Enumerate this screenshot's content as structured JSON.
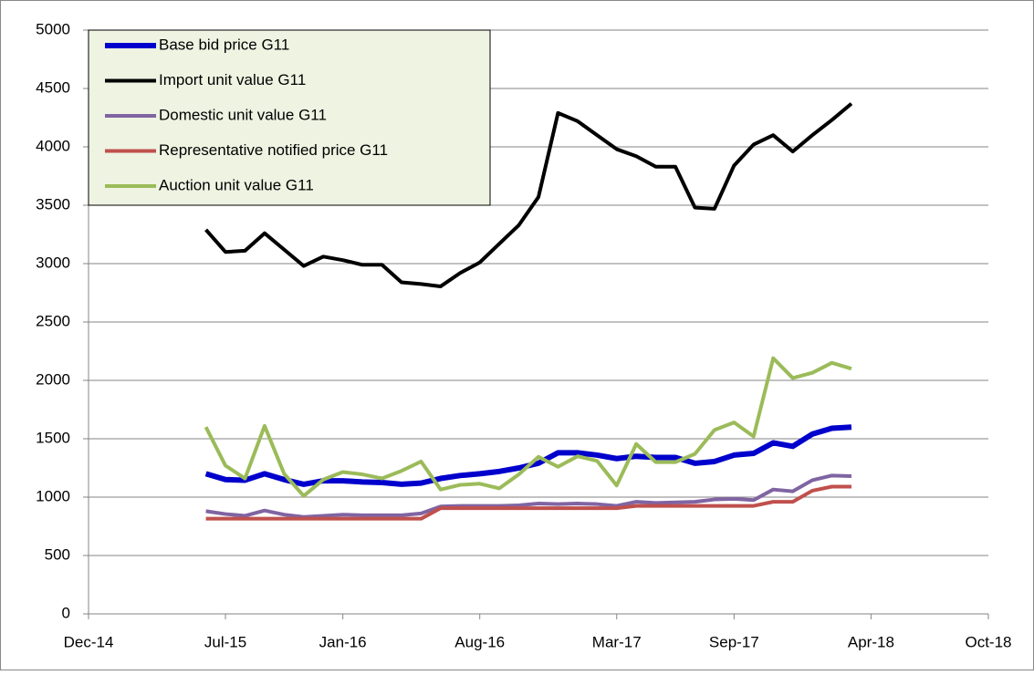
{
  "chart_data": {
    "type": "line",
    "x": [
      "2015-06",
      "2015-07",
      "2015-08",
      "2015-09",
      "2015-10",
      "2015-11",
      "2015-12",
      "2016-01",
      "2016-02",
      "2016-03",
      "2016-04",
      "2016-05",
      "2016-06",
      "2016-07",
      "2016-08",
      "2016-09",
      "2016-10",
      "2016-11",
      "2016-12",
      "2017-01",
      "2017-02",
      "2017-03",
      "2017-04",
      "2017-05",
      "2017-06",
      "2017-07",
      "2017-08",
      "2017-09",
      "2017-10",
      "2017-11",
      "2017-12",
      "2018-01",
      "2018-02",
      "2018-03"
    ],
    "series": [
      {
        "name": "Base bid price G11",
        "color": "#0000cc",
        "values": [
          1200,
          1150,
          1145,
          1200,
          1150,
          1110,
          1140,
          1140,
          1130,
          1125,
          1110,
          1120,
          1160,
          1185,
          1200,
          1220,
          1250,
          1290,
          1380,
          1380,
          1360,
          1330,
          1350,
          1340,
          1340,
          1290,
          1305,
          1360,
          1375,
          1465,
          1435,
          1540,
          1590,
          1600
        ]
      },
      {
        "name": "Import unit value G11",
        "color": "#000000",
        "values": [
          3290,
          3100,
          3110,
          3260,
          3120,
          2980,
          3060,
          3030,
          2990,
          2990,
          2840,
          2825,
          2805,
          2920,
          3010,
          3170,
          3330,
          3570,
          4290,
          4220,
          4100,
          3980,
          3920,
          3830,
          3830,
          3480,
          3470,
          3840,
          4020,
          4100,
          3960,
          4100,
          4230,
          4370
        ]
      },
      {
        "name": "Domestic unit value G11",
        "color": "#8064a2",
        "values": [
          880,
          855,
          840,
          885,
          850,
          830,
          840,
          850,
          845,
          845,
          845,
          860,
          920,
          925,
          925,
          925,
          930,
          945,
          940,
          945,
          940,
          925,
          960,
          950,
          955,
          960,
          980,
          985,
          975,
          1065,
          1050,
          1145,
          1185,
          1180
        ]
      },
      {
        "name": "Representative notified price G11",
        "color": "#c0504d",
        "values": [
          815,
          815,
          815,
          815,
          815,
          815,
          815,
          815,
          815,
          815,
          815,
          815,
          905,
          905,
          905,
          905,
          905,
          905,
          905,
          905,
          905,
          905,
          925,
          925,
          925,
          925,
          925,
          925,
          925,
          960,
          960,
          1055,
          1090,
          1090
        ]
      },
      {
        "name": "Auction unit value G11",
        "color": "#9bbb59",
        "values": [
          1600,
          1270,
          1160,
          1610,
          1200,
          1010,
          1150,
          1215,
          1195,
          1160,
          1225,
          1305,
          1065,
          1105,
          1115,
          1075,
          1195,
          1345,
          1260,
          1350,
          1310,
          1100,
          1455,
          1300,
          1300,
          1370,
          1575,
          1640,
          1520,
          2190,
          2020,
          2065,
          2150,
          2100
        ]
      }
    ],
    "xlim": [
      "2014-12",
      "2018-10"
    ],
    "xticks": [
      {
        "value": "2014-12",
        "label": "Dec-14"
      },
      {
        "value": "2015-07",
        "label": "Jul-15"
      },
      {
        "value": "2016-01",
        "label": "Jan-16"
      },
      {
        "value": "2016-08",
        "label": "Aug-16"
      },
      {
        "value": "2017-03",
        "label": "Mar-17"
      },
      {
        "value": "2017-09",
        "label": "Sep-17"
      },
      {
        "value": "2018-04",
        "label": "Apr-18"
      },
      {
        "value": "2018-10",
        "label": "Oct-18"
      }
    ],
    "ylim": [
      0,
      5000
    ],
    "yticks": [
      0,
      500,
      1000,
      1500,
      2000,
      2500,
      3000,
      3500,
      4000,
      4500,
      5000
    ],
    "grid": true,
    "legend": "upper left"
  }
}
